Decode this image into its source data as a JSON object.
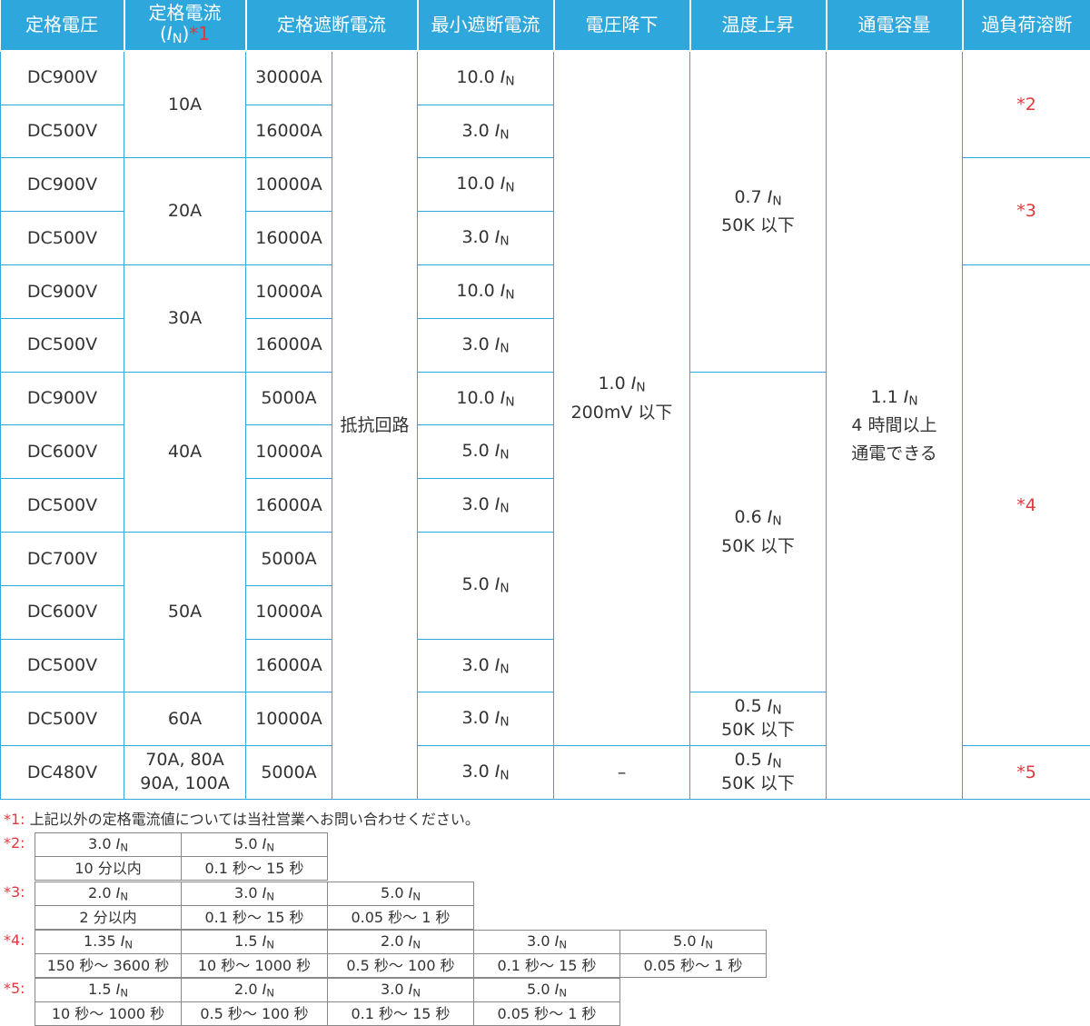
{
  "headers": {
    "voltage": "定格電圧",
    "current_line1": "定格電流",
    "current_open": "(",
    "current_I": "I",
    "current_N": "N",
    "current_close": ")",
    "current_mark": "*1",
    "interrupt": "定格遮断電流",
    "min_interrupt": "最小遮断電流",
    "voltage_drop": "電圧降下",
    "temp_rise": "温度上昇",
    "capacity": "通電容量",
    "overload": "過負荷溶断"
  },
  "symbol": {
    "I": "I",
    "N": "N"
  },
  "rows": [
    {
      "voltage": "DC900V",
      "current": "10A",
      "interrupt": "30000A",
      "min_val": "10.0"
    },
    {
      "voltage": "DC500V",
      "interrupt": "16000A",
      "min_val": "3.0"
    },
    {
      "voltage": "DC900V",
      "current": "20A",
      "interrupt": "10000A",
      "min_val": "10.0"
    },
    {
      "voltage": "DC500V",
      "interrupt": "16000A",
      "min_val": "3.0"
    },
    {
      "voltage": "DC900V",
      "current": "30A",
      "interrupt": "10000A",
      "min_val": "10.0"
    },
    {
      "voltage": "DC500V",
      "interrupt": "16000A",
      "min_val": "3.0"
    },
    {
      "voltage": "DC900V",
      "current": "40A",
      "interrupt": "5000A",
      "min_val": "10.0"
    },
    {
      "voltage": "DC600V",
      "interrupt": "10000A",
      "min_val": "5.0"
    },
    {
      "voltage": "DC500V",
      "interrupt": "16000A",
      "min_val": "3.0"
    },
    {
      "voltage": "DC700V",
      "current": "50A",
      "interrupt": "5000A",
      "min_val": "5.0"
    },
    {
      "voltage": "DC600V",
      "interrupt": "10000A"
    },
    {
      "voltage": "DC500V",
      "interrupt": "16000A",
      "min_val": "3.0"
    },
    {
      "voltage": "DC500V",
      "current": "60A",
      "interrupt": "10000A",
      "min_val": "3.0"
    },
    {
      "voltage": "DC480V",
      "current_line1": "70A, 80A",
      "current_line2": "90A, 100A",
      "interrupt": "5000A",
      "min_val": "3.0"
    }
  ],
  "resistance_circuit": "抵抗回路",
  "voltage_drop": {
    "val": "1.0",
    "line2": "200mV 以下",
    "last": "–"
  },
  "temp_rise": {
    "group1": {
      "val": "0.7",
      "line2": "50K 以下"
    },
    "group2": {
      "val": "0.6",
      "line2": "50K 以下"
    },
    "group3": {
      "val": "0.5",
      "line2": "50K 以下"
    },
    "group4": {
      "val": "0.5",
      "line2": "50K 以下"
    }
  },
  "capacity": {
    "val": "1.1",
    "line2": "4 時間以上",
    "line3": "通電できる"
  },
  "overload_marks": [
    "*2",
    "*3",
    "*4",
    "*5"
  ],
  "notes": {
    "note1_mark": "*1:",
    "note1_text": "上記以外の定格電流値については当社営業へお問い合わせください。",
    "tables": [
      {
        "mark": "*2:",
        "cells": [
          {
            "val": "3.0",
            "time": "10 分以内"
          },
          {
            "val": "5.0",
            "time": "0.1 秒～ 15 秒"
          }
        ]
      },
      {
        "mark": "*3:",
        "cells": [
          {
            "val": "2.0",
            "time": "2 分以内"
          },
          {
            "val": "3.0",
            "time": "0.1 秒～ 15 秒"
          },
          {
            "val": "5.0",
            "time": "0.05 秒～ 1 秒"
          }
        ]
      },
      {
        "mark": "*4:",
        "cells": [
          {
            "val": "1.35",
            "time": "150 秒～ 3600 秒"
          },
          {
            "val": "1.5",
            "time": "10 秒～ 1000 秒"
          },
          {
            "val": "2.0",
            "time": "0.5 秒～ 100 秒"
          },
          {
            "val": "3.0",
            "time": "0.1 秒～ 15 秒"
          },
          {
            "val": "5.0",
            "time": "0.05 秒～ 1 秒"
          }
        ]
      },
      {
        "mark": "*5:",
        "cells": [
          {
            "val": "1.5",
            "time": "10 秒～ 1000 秒"
          },
          {
            "val": "2.0",
            "time": "0.5 秒～ 100 秒"
          },
          {
            "val": "3.0",
            "time": "0.1 秒～ 15 秒"
          },
          {
            "val": "5.0",
            "time": "0.05 秒～ 1 秒"
          }
        ]
      }
    ]
  }
}
